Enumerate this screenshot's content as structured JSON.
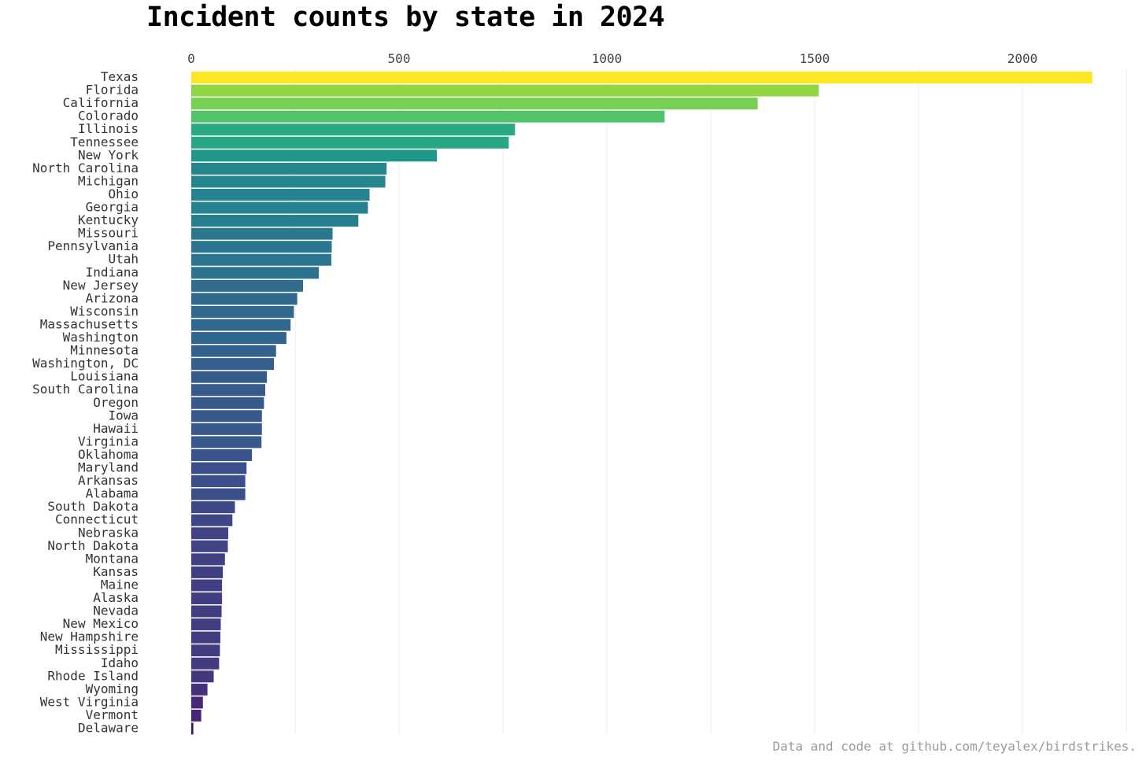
{
  "chart_data": {
    "type": "bar",
    "orientation": "horizontal",
    "title": "Incident counts by state in 2024",
    "caption": "Data and code at github.com/teyalex/birdstrikes.",
    "xlabel": "",
    "ylabel": "",
    "xlim": [
      0,
      2250
    ],
    "x_ticks": [
      0,
      500,
      1000,
      1500,
      2000
    ],
    "x_axis_position": "top",
    "grid": true,
    "legend": "none",
    "color_scale": "viridis",
    "categories": [
      "Texas",
      "Florida",
      "California",
      "Colorado",
      "Illinois",
      "Tennessee",
      "New York",
      "North Carolina",
      "Michigan",
      "Ohio",
      "Georgia",
      "Kentucky",
      "Missouri",
      "Pennsylvania",
      "Utah",
      "Indiana",
      "New Jersey",
      "Arizona",
      "Wisconsin",
      "Massachusetts",
      "Washington",
      "Minnesota",
      "Washington, DC",
      "Louisiana",
      "South Carolina",
      "Oregon",
      "Iowa",
      "Hawaii",
      "Virginia",
      "Oklahoma",
      "Maryland",
      "Arkansas",
      "Alabama",
      "South Dakota",
      "Connecticut",
      "Nebraska",
      "North Dakota",
      "Montana",
      "Kansas",
      "Maine",
      "Alaska",
      "Nevada",
      "New Mexico",
      "New Hampshire",
      "Mississippi",
      "Idaho",
      "Rhode Island",
      "Wyoming",
      "West Virginia",
      "Vermont",
      "Delaware"
    ],
    "values": [
      2168,
      1510,
      1363,
      1139,
      779,
      764,
      591,
      470,
      467,
      429,
      425,
      402,
      340,
      338,
      337,
      307,
      269,
      255,
      247,
      239,
      229,
      204,
      199,
      182,
      178,
      175,
      170,
      170,
      169,
      146,
      133,
      130,
      130,
      105,
      99,
      89,
      88,
      81,
      76,
      74,
      74,
      73,
      71,
      70,
      69,
      67,
      54,
      39,
      28,
      24,
      5
    ]
  }
}
